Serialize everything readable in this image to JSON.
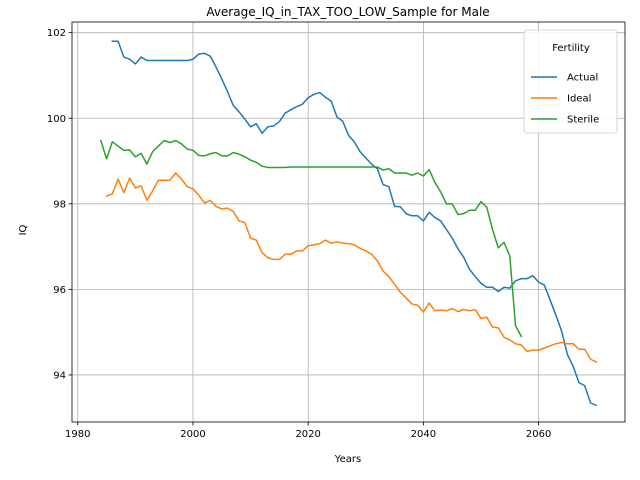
{
  "chart_data": {
    "type": "line",
    "title": "Average_IQ_in_TAX_TOO_LOW_Sample for Male",
    "xlabel": "Years",
    "ylabel": "IQ",
    "xlim": [
      1979,
      2075
    ],
    "ylim": [
      92.9,
      102.25
    ],
    "xticks": [
      1980,
      2000,
      2020,
      2040,
      2060
    ],
    "yticks": [
      94,
      96,
      98,
      100,
      102
    ],
    "grid": true,
    "legend": {
      "title": "Fertility",
      "placement": "top-right"
    },
    "colors": {
      "Actual": "#1f77b4",
      "Ideal": "#ff7f0e",
      "Sterile": "#2ca02c"
    },
    "series": [
      {
        "name": "Actual",
        "x": [
          1986,
          1987,
          1988,
          1989,
          1990,
          1991,
          1992,
          1993,
          1994,
          1995,
          1996,
          1997,
          1998,
          1999,
          2000,
          2001,
          2002,
          2003,
          2004,
          2005,
          2006,
          2007,
          2008,
          2009,
          2010,
          2011,
          2012,
          2013,
          2014,
          2015,
          2016,
          2017,
          2018,
          2019,
          2020,
          2021,
          2022,
          2023,
          2024,
          2025,
          2026,
          2027,
          2028,
          2029,
          2030,
          2031,
          2032,
          2033,
          2034,
          2035,
          2036,
          2037,
          2038,
          2039,
          2040,
          2041,
          2042,
          2043,
          2044,
          2045,
          2046,
          2047,
          2048,
          2049,
          2050,
          2051,
          2052,
          2053,
          2054,
          2055,
          2056,
          2057,
          2058,
          2059,
          2060,
          2061,
          2062,
          2063,
          2064,
          2065,
          2066,
          2067,
          2068,
          2069,
          2070
        ],
        "y": [
          101.8,
          101.8,
          101.43,
          101.38,
          101.27,
          101.43,
          101.35,
          101.35,
          101.35,
          101.35,
          101.35,
          101.35,
          101.35,
          101.35,
          101.38,
          101.5,
          101.52,
          101.45,
          101.2,
          100.92,
          100.62,
          100.3,
          100.15,
          99.98,
          99.8,
          99.87,
          99.65,
          99.8,
          99.82,
          99.92,
          100.12,
          100.2,
          100.27,
          100.33,
          100.48,
          100.56,
          100.6,
          100.49,
          100.4,
          100.03,
          99.93,
          99.6,
          99.45,
          99.22,
          99.07,
          98.93,
          98.82,
          98.45,
          98.4,
          97.94,
          97.93,
          97.77,
          97.72,
          97.72,
          97.6,
          97.8,
          97.68,
          97.6,
          97.4,
          97.2,
          96.95,
          96.75,
          96.47,
          96.3,
          96.14,
          96.05,
          96.05,
          95.95,
          96.05,
          96.03,
          96.2,
          96.25,
          96.25,
          96.32,
          96.17,
          96.1,
          95.75,
          95.4,
          95.02,
          94.48,
          94.2,
          93.82,
          93.75,
          93.35,
          93.29
        ]
      },
      {
        "name": "Ideal",
        "x": [
          1985,
          1986,
          1987,
          1988,
          1989,
          1990,
          1991,
          1992,
          1993,
          1994,
          1995,
          1996,
          1997,
          1998,
          1999,
          2000,
          2001,
          2002,
          2003,
          2004,
          2005,
          2006,
          2007,
          2008,
          2009,
          2010,
          2011,
          2012,
          2013,
          2014,
          2015,
          2016,
          2017,
          2018,
          2019,
          2020,
          2021,
          2022,
          2023,
          2024,
          2025,
          2026,
          2027,
          2028,
          2029,
          2030,
          2031,
          2032,
          2033,
          2034,
          2035,
          2036,
          2037,
          2038,
          2039,
          2040,
          2041,
          2042,
          2043,
          2044,
          2045,
          2046,
          2047,
          2048,
          2049,
          2050,
          2051,
          2052,
          2053,
          2054,
          2055,
          2056,
          2057,
          2058,
          2059,
          2060,
          2061,
          2062,
          2063,
          2064,
          2065,
          2066,
          2067,
          2068,
          2069,
          2070
        ],
        "y": [
          98.18,
          98.23,
          98.58,
          98.26,
          98.6,
          98.37,
          98.42,
          98.08,
          98.3,
          98.55,
          98.55,
          98.55,
          98.72,
          98.58,
          98.4,
          98.35,
          98.2,
          98.02,
          98.08,
          97.94,
          97.88,
          97.9,
          97.82,
          97.6,
          97.56,
          97.2,
          97.15,
          96.86,
          96.74,
          96.7,
          96.7,
          96.82,
          96.82,
          96.9,
          96.9,
          97.02,
          97.04,
          97.07,
          97.15,
          97.08,
          97.11,
          97.08,
          97.07,
          97.04,
          96.96,
          96.9,
          96.82,
          96.67,
          96.43,
          96.3,
          96.12,
          95.93,
          95.8,
          95.66,
          95.63,
          95.47,
          95.68,
          95.5,
          95.52,
          95.5,
          95.55,
          95.48,
          95.53,
          95.5,
          95.53,
          95.32,
          95.35,
          95.12,
          95.1,
          94.88,
          94.82,
          94.73,
          94.7,
          94.55,
          94.58,
          94.58,
          94.63,
          94.68,
          94.73,
          94.76,
          94.73,
          94.73,
          94.6,
          94.6,
          94.37,
          94.3
        ]
      },
      {
        "name": "Sterile",
        "x": [
          1984,
          1985,
          1986,
          1987,
          1988,
          1989,
          1990,
          1991,
          1992,
          1993,
          1994,
          1995,
          1996,
          1997,
          1998,
          1999,
          2000,
          2001,
          2002,
          2003,
          2004,
          2005,
          2006,
          2007,
          2008,
          2009,
          2010,
          2011,
          2012,
          2013,
          2014,
          2015,
          2016,
          2017,
          2018,
          2019,
          2020,
          2021,
          2022,
          2023,
          2024,
          2025,
          2026,
          2027,
          2028,
          2029,
          2030,
          2031,
          2032,
          2033,
          2034,
          2035,
          2036,
          2037,
          2038,
          2039,
          2040,
          2041,
          2042,
          2043,
          2044,
          2045,
          2046,
          2047,
          2048,
          2049,
          2050,
          2051,
          2052,
          2053,
          2054,
          2055,
          2056,
          2057
        ],
        "y": [
          99.48,
          99.05,
          99.45,
          99.35,
          99.25,
          99.26,
          99.1,
          99.18,
          98.93,
          99.22,
          99.35,
          99.48,
          99.43,
          99.48,
          99.4,
          99.28,
          99.25,
          99.13,
          99.12,
          99.17,
          99.2,
          99.12,
          99.12,
          99.2,
          99.16,
          99.1,
          99.02,
          98.97,
          98.88,
          98.85,
          98.85,
          98.85,
          98.85,
          98.86,
          98.86,
          98.86,
          98.86,
          98.86,
          98.86,
          98.86,
          98.86,
          98.86,
          98.86,
          98.86,
          98.86,
          98.86,
          98.86,
          98.86,
          98.86,
          98.79,
          98.82,
          98.72,
          98.72,
          98.72,
          98.67,
          98.72,
          98.65,
          98.8,
          98.5,
          98.28,
          98.0,
          98.0,
          97.75,
          97.77,
          97.85,
          97.85,
          98.05,
          97.92,
          97.4,
          96.97,
          97.1,
          96.78,
          95.15,
          94.9
        ]
      }
    ]
  }
}
